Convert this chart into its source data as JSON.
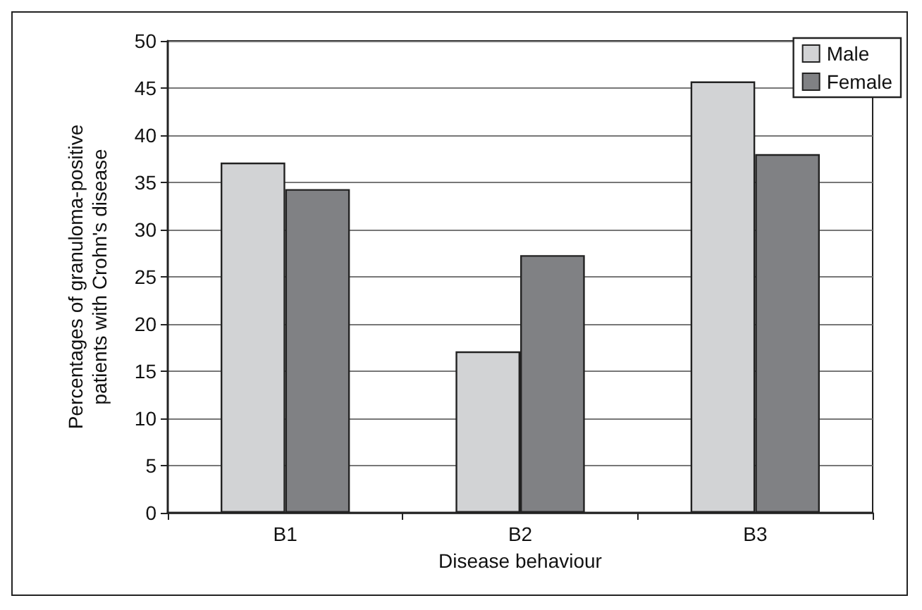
{
  "chart_data": {
    "type": "bar",
    "xlabel": "Disease behaviour",
    "ylabel": "Percentages of granuloma-positive\npatients with Crohn's disease",
    "categories": [
      "B1",
      "B2",
      "B3"
    ],
    "series": [
      {
        "name": "Male",
        "color": "#d2d3d5",
        "values": [
          37.1,
          17.1,
          45.7
        ]
      },
      {
        "name": "Female",
        "color": "#808184",
        "values": [
          34.3,
          27.3,
          38.0
        ]
      }
    ],
    "ylim": [
      0,
      50
    ],
    "yticks": [
      0,
      5,
      10,
      15,
      20,
      25,
      30,
      35,
      40,
      45,
      50
    ],
    "grid": "y",
    "legend": "top right"
  }
}
